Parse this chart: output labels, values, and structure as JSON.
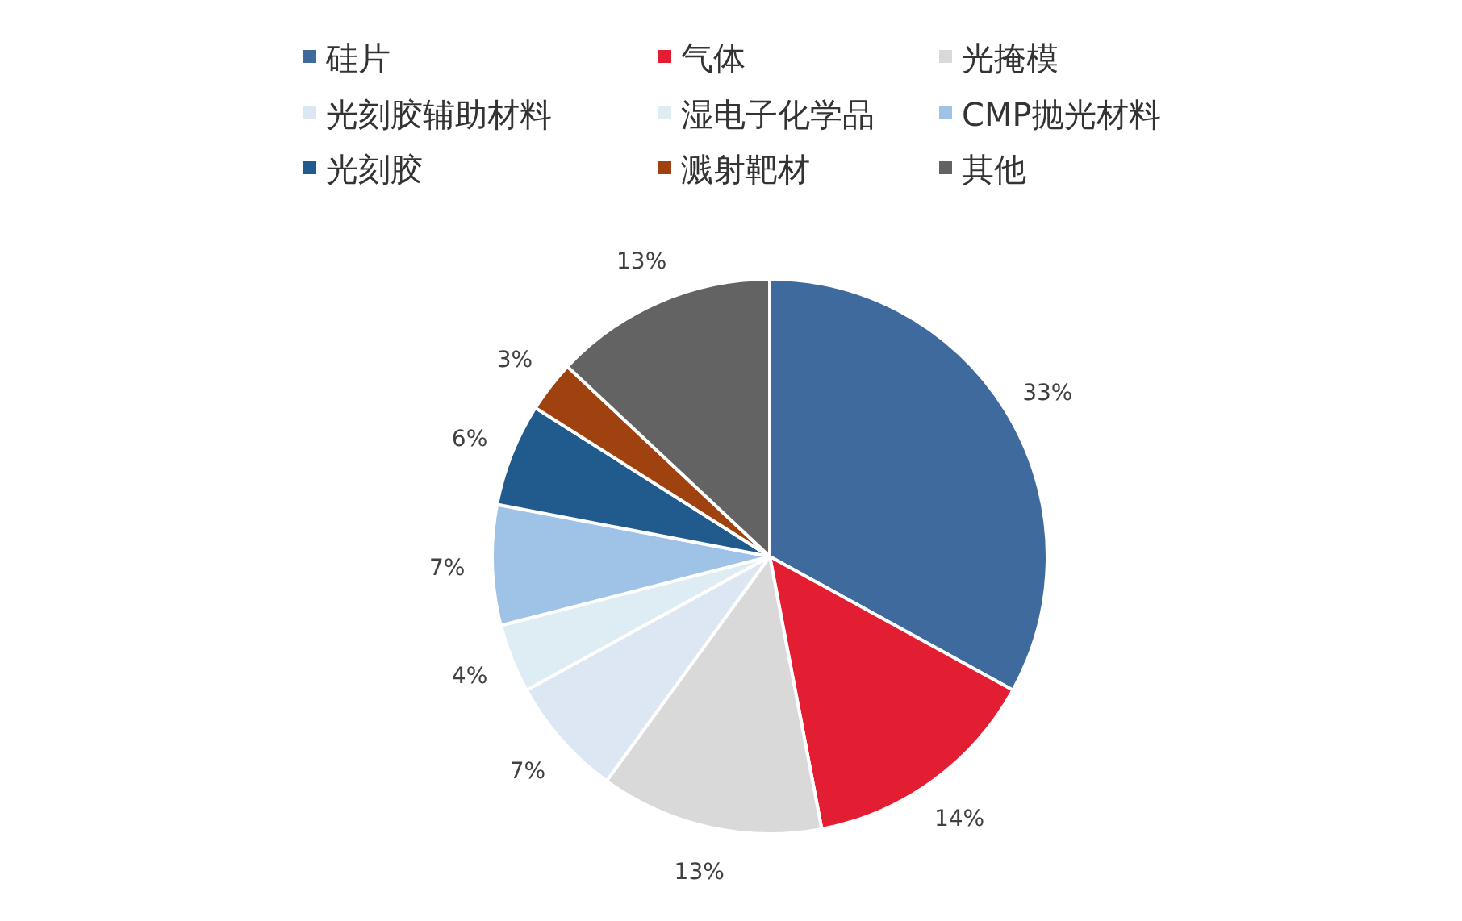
{
  "chart_data": {
    "type": "pie",
    "categories": [
      "硅片",
      "气体",
      "光掩模",
      "光刻胶辅助材料",
      "湿电子化学品",
      "CMP抛光材料",
      "光刻胶",
      "溅射靶材",
      "其他"
    ],
    "values": [
      33,
      14,
      13,
      7,
      4,
      7,
      6,
      3,
      13
    ],
    "colors": [
      "#3e6a9e",
      "#e31d32",
      "#d9d9d9",
      "#dce7f3",
      "#deedf4",
      "#9fc3e7",
      "#215b8e",
      "#a0420f",
      "#636363"
    ],
    "value_labels": [
      "33%",
      "14%",
      "13%",
      "7%",
      "4%",
      "7%",
      "6%",
      "3%",
      "13%"
    ],
    "legend": "top"
  }
}
